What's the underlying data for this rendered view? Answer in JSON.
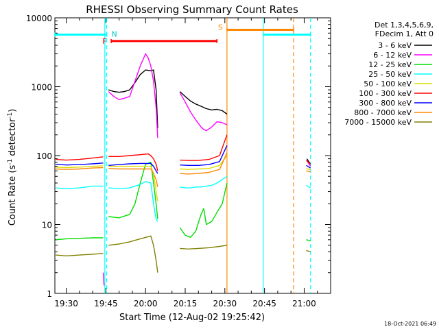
{
  "chart_data": {
    "type": "line",
    "title": "RHESSI Observing Summary Count Rates",
    "xlabel": "Start Time (12-Aug-02 19:25:42)",
    "ylabel_main": "Count Rate (s",
    "ylabel_sup1": "-1",
    "ylabel_mid": " detector",
    "ylabel_sup2": "-1",
    "ylabel_end": ")",
    "yscale": "log",
    "ylim": [
      1,
      10000
    ],
    "xlim_min": [
      1165.7,
      1270
    ],
    "y_ticks": [
      {
        "v": 1,
        "label": "1"
      },
      {
        "v": 10,
        "label": "10"
      },
      {
        "v": 100,
        "label": "100"
      },
      {
        "v": 1000,
        "label": "1000"
      },
      {
        "v": 10000,
        "label": "10000"
      }
    ],
    "x_ticks": [
      {
        "m": 1170,
        "label": "19:30"
      },
      {
        "m": 1185,
        "label": "19:45"
      },
      {
        "m": 1200,
        "label": "20:00"
      },
      {
        "m": 1215,
        "label": "20:15"
      },
      {
        "m": 1230,
        "label": "20:30"
      },
      {
        "m": 1245,
        "label": "20:45"
      },
      {
        "m": 1260,
        "label": "21:00"
      }
    ],
    "legend_header": [
      "Det 1,3,4,5,6,9,",
      "FDecim 1, Att 0"
    ],
    "legend_position": "right",
    "series": [
      {
        "name": "3 - 6 keV",
        "color": "#000000",
        "segments": [
          [
            [
              1186,
              900
            ],
            [
              1188,
              850
            ],
            [
              1190,
              830
            ],
            [
              1192,
              850
            ],
            [
              1194,
              900
            ],
            [
              1196,
              1150
            ],
            [
              1198,
              1500
            ],
            [
              1200,
              1750
            ],
            [
              1202,
              1700
            ],
            [
              1203,
              1750
            ],
            [
              1204,
              900
            ],
            [
              1204.6,
              250
            ]
          ],
          [
            [
              1213,
              850
            ],
            [
              1215,
              720
            ],
            [
              1217,
              620
            ],
            [
              1219,
              560
            ],
            [
              1221,
              520
            ],
            [
              1223,
              480
            ],
            [
              1225,
              460
            ],
            [
              1227,
              470
            ],
            [
              1229,
              450
            ],
            [
              1230.8,
              400
            ]
          ],
          [
            [
              1261,
              90
            ],
            [
              1262.4,
              75
            ]
          ]
        ]
      },
      {
        "name": "6 - 12 keV",
        "color": "#ff00ff",
        "segments": [
          [
            [
              1184,
              2
            ],
            [
              1184.3,
              1.3
            ]
          ],
          [
            [
              1186,
              850
            ],
            [
              1188,
              720
            ],
            [
              1190,
              650
            ],
            [
              1192,
              680
            ],
            [
              1194,
              720
            ],
            [
              1196,
              1200
            ],
            [
              1198,
              2000
            ],
            [
              1200,
              3000
            ],
            [
              1201,
              2600
            ],
            [
              1202,
              2000
            ],
            [
              1203,
              1200
            ],
            [
              1204,
              500
            ],
            [
              1204.6,
              180
            ]
          ],
          [
            [
              1213,
              820
            ],
            [
              1215,
              600
            ],
            [
              1217,
              430
            ],
            [
              1219,
              330
            ],
            [
              1221,
              260
            ],
            [
              1222,
              240
            ],
            [
              1223,
              230
            ],
            [
              1225,
              260
            ],
            [
              1227,
              310
            ],
            [
              1229,
              300
            ],
            [
              1230.8,
              280
            ]
          ],
          [
            [
              1261,
              85
            ],
            [
              1262.4,
              70
            ]
          ]
        ]
      },
      {
        "name": "12 - 25 keV",
        "color": "#00dd00",
        "segments": [
          [
            [
              1166,
              6
            ],
            [
              1170,
              6.2
            ],
            [
              1175,
              6.3
            ],
            [
              1180,
              6.4
            ],
            [
              1184,
              6.4
            ]
          ],
          [
            [
              1186,
              13
            ],
            [
              1190,
              12.5
            ],
            [
              1194,
              14
            ],
            [
              1196,
              20
            ],
            [
              1198,
              40
            ],
            [
              1200,
              75
            ],
            [
              1202,
              80
            ],
            [
              1203,
              40
            ],
            [
              1204,
              20
            ],
            [
              1204.6,
              12
            ]
          ],
          [
            [
              1213,
              9
            ],
            [
              1215,
              7
            ],
            [
              1217,
              6.5
            ],
            [
              1219,
              8
            ],
            [
              1221,
              14
            ],
            [
              1222,
              17
            ],
            [
              1223,
              10
            ],
            [
              1225,
              11
            ],
            [
              1227,
              15
            ],
            [
              1229,
              20
            ],
            [
              1230.8,
              40
            ]
          ],
          [
            [
              1260.8,
              6
            ],
            [
              1262.4,
              5.8
            ]
          ]
        ]
      },
      {
        "name": "25 - 50 keV",
        "color": "#00ffff",
        "segments": [
          [
            [
              1166,
              34
            ],
            [
              1170,
              33
            ],
            [
              1175,
              34
            ],
            [
              1180,
              36
            ],
            [
              1184,
              36
            ]
          ],
          [
            [
              1186,
              34
            ],
            [
              1190,
              33
            ],
            [
              1194,
              34
            ],
            [
              1196,
              36
            ],
            [
              1198,
              38
            ],
            [
              1200,
              42
            ],
            [
              1202,
              40
            ],
            [
              1203,
              20
            ],
            [
              1204,
              12
            ],
            [
              1204.6,
              11
            ]
          ],
          [
            [
              1213,
              35
            ],
            [
              1215,
              34
            ],
            [
              1217,
              34
            ],
            [
              1219,
              35
            ],
            [
              1221,
              35
            ],
            [
              1223,
              36
            ],
            [
              1225,
              37
            ],
            [
              1227,
              40
            ],
            [
              1229,
              45
            ],
            [
              1230.8,
              50
            ]
          ],
          [
            [
              1260.8,
              37
            ],
            [
              1262.4,
              34
            ]
          ]
        ]
      },
      {
        "name": "50 - 100 keV",
        "color": "#dddd00",
        "segments": [
          [
            [
              1166,
              68
            ],
            [
              1170,
              67
            ],
            [
              1175,
              68
            ],
            [
              1180,
              70
            ],
            [
              1184,
              71
            ]
          ],
          [
            [
              1186,
              70
            ],
            [
              1190,
              70
            ],
            [
              1194,
              70
            ],
            [
              1198,
              70
            ],
            [
              1202,
              70
            ],
            [
              1203,
              55
            ],
            [
              1204,
              30
            ],
            [
              1204.6,
              22
            ]
          ],
          [
            [
              1213,
              64
            ],
            [
              1216,
              63
            ],
            [
              1220,
              64
            ],
            [
              1224,
              65
            ],
            [
              1228,
              72
            ],
            [
              1230.8,
              100
            ]
          ],
          [
            [
              1260.8,
              65
            ],
            [
              1262.4,
              62
            ]
          ]
        ]
      },
      {
        "name": "100 - 300 keV",
        "color": "#ff0000",
        "segments": [
          [
            [
              1166,
              88
            ],
            [
              1170,
              86
            ],
            [
              1175,
              88
            ],
            [
              1180,
              92
            ],
            [
              1184,
              96
            ]
          ],
          [
            [
              1186,
              97
            ],
            [
              1190,
              97
            ],
            [
              1194,
              100
            ],
            [
              1198,
              103
            ],
            [
              1201,
              106
            ],
            [
              1202,
              100
            ],
            [
              1203,
              90
            ],
            [
              1204,
              75
            ],
            [
              1204.6,
              60
            ]
          ],
          [
            [
              1213,
              86
            ],
            [
              1216,
              85
            ],
            [
              1220,
              85
            ],
            [
              1224,
              88
            ],
            [
              1228,
              100
            ],
            [
              1230.8,
              200
            ]
          ],
          [
            [
              1260.8,
              85
            ],
            [
              1262.4,
              75
            ]
          ]
        ]
      },
      {
        "name": "300 - 800 keV",
        "color": "#0000ff",
        "segments": [
          [
            [
              1166,
              75
            ],
            [
              1170,
              73
            ],
            [
              1175,
              74
            ],
            [
              1180,
              76
            ],
            [
              1184,
              78
            ]
          ],
          [
            [
              1186,
              72
            ],
            [
              1190,
              74
            ],
            [
              1194,
              76
            ],
            [
              1198,
              77
            ],
            [
              1202,
              77
            ],
            [
              1203,
              70
            ],
            [
              1204,
              60
            ],
            [
              1204.6,
              55
            ]
          ],
          [
            [
              1213,
              73
            ],
            [
              1216,
              72
            ],
            [
              1220,
              72
            ],
            [
              1224,
              74
            ],
            [
              1228,
              82
            ],
            [
              1230.8,
              140
            ]
          ],
          [
            [
              1260.8,
              72
            ],
            [
              1262.4,
              66
            ]
          ]
        ]
      },
      {
        "name": "800 - 7000 keV",
        "color": "#ff8800",
        "segments": [
          [
            [
              1166,
              64
            ],
            [
              1170,
              63
            ],
            [
              1175,
              64
            ],
            [
              1180,
              66
            ],
            [
              1184,
              67
            ]
          ],
          [
            [
              1186,
              65
            ],
            [
              1190,
              64
            ],
            [
              1194,
              64
            ],
            [
              1198,
              64
            ],
            [
              1202,
              64
            ],
            [
              1203,
              55
            ],
            [
              1204,
              45
            ],
            [
              1204.6,
              35
            ]
          ],
          [
            [
              1213,
              55
            ],
            [
              1216,
              54
            ],
            [
              1220,
              55
            ],
            [
              1224,
              57
            ],
            [
              1228,
              63
            ],
            [
              1230.8,
              110
            ]
          ],
          [
            [
              1260.8,
              60
            ],
            [
              1262.4,
              58
            ]
          ]
        ]
      },
      {
        "name": "7000 - 15000 keV",
        "color": "#808000",
        "segments": [
          [
            [
              1166,
              3.6
            ],
            [
              1170,
              3.5
            ],
            [
              1175,
              3.6
            ],
            [
              1180,
              3.7
            ],
            [
              1184,
              3.8
            ]
          ],
          [
            [
              1186,
              5
            ],
            [
              1190,
              5.2
            ],
            [
              1194,
              5.6
            ],
            [
              1198,
              6.2
            ],
            [
              1202,
              6.8
            ],
            [
              1203,
              5
            ],
            [
              1204,
              3
            ],
            [
              1204.6,
              2
            ]
          ],
          [
            [
              1213,
              4.5
            ],
            [
              1216,
              4.4
            ],
            [
              1220,
              4.5
            ],
            [
              1224,
              4.6
            ],
            [
              1228,
              4.8
            ],
            [
              1230.8,
              5
            ]
          ],
          [
            [
              1260.8,
              4.2
            ],
            [
              1262.4,
              4
            ]
          ]
        ]
      }
    ],
    "annotations": [
      {
        "label": "N",
        "m": 1185.3,
        "y": 5700,
        "color": "#00cccc",
        "dx": 7,
        "dy": 3
      },
      {
        "label": "F",
        "m": 1187,
        "y": 4600,
        "color": "#ff0000",
        "dx": -13,
        "dy": 4
      },
      {
        "label": "S",
        "m": 1230.8,
        "y": 6700,
        "color": "#ff8800",
        "dx": -13,
        "dy": 0
      }
    ],
    "bars": [
      {
        "name": "night",
        "color": "#00ffff",
        "m1": 1165.7,
        "m2": 1185.3,
        "y": 5700
      },
      {
        "name": "night",
        "color": "#00ffff",
        "m1": 1244.5,
        "m2": 1262.4,
        "y": 5700
      },
      {
        "name": "flare",
        "color": "#ff0000",
        "m1": 1187,
        "m2": 1227,
        "y": 4600
      },
      {
        "name": "saa",
        "color": "#ff8800",
        "m1": 1230.8,
        "m2": 1256,
        "y": 6700
      }
    ],
    "vlines": [
      {
        "m": 1184.6,
        "color": "#00ffff",
        "dash": false
      },
      {
        "m": 1185.3,
        "color": "#00ffff",
        "dash": true
      },
      {
        "m": 1230.8,
        "color": "#ff8800",
        "dash": false
      },
      {
        "m": 1244.5,
        "color": "#00ffff",
        "dash": false
      },
      {
        "m": 1256,
        "color": "#ff8800",
        "dash": true
      },
      {
        "m": 1262.4,
        "color": "#00ffff",
        "dash": true
      }
    ],
    "footer_date": "18-Oct-2021 06:49"
  }
}
